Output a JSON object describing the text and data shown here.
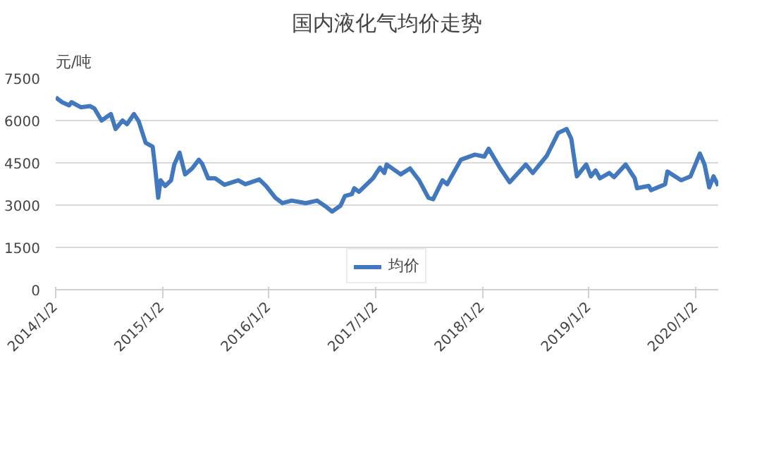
{
  "chart_data": {
    "type": "line",
    "title": "国内液化气均价走势",
    "ylabel": "元/吨",
    "x": [
      "2014-01-02",
      "2014-01-24",
      "2014-02-17",
      "2014-02-25",
      "2014-03-29",
      "2014-04-30",
      "2014-05-15",
      "2014-06-08",
      "2014-07-10",
      "2014-07-26",
      "2014-08-19",
      "2014-09-03",
      "2014-09-27",
      "2014-10-13",
      "2014-11-06",
      "2014-11-30",
      "2014-12-08",
      "2014-12-19",
      "2014-12-27",
      "2015-01-12",
      "2015-02-01",
      "2015-02-12",
      "2015-03-02",
      "2015-03-21",
      "2015-04-14",
      "2015-05-07",
      "2015-05-18",
      "2015-06-08",
      "2015-07-02",
      "2015-08-03",
      "2015-09-19",
      "2015-10-13",
      "2015-11-30",
      "2015-12-23",
      "2016-01-24",
      "2016-02-17",
      "2016-03-20",
      "2016-05-07",
      "2016-06-15",
      "2016-07-17",
      "2016-08-05",
      "2016-09-03",
      "2016-09-18",
      "2016-10-12",
      "2016-10-20",
      "2016-11-05",
      "2016-12-23",
      "2017-01-16",
      "2017-01-31",
      "2017-02-08",
      "2017-03-28",
      "2017-04-29",
      "2017-05-30",
      "2017-07-01",
      "2017-07-17",
      "2017-08-18",
      "2017-09-03",
      "2017-10-20",
      "2017-12-07",
      "2018-01-08",
      "2018-01-23",
      "2018-03-04",
      "2018-04-05",
      "2018-05-30",
      "2018-06-23",
      "2018-08-10",
      "2018-09-18",
      "2018-10-17",
      "2018-11-02",
      "2018-11-21",
      "2018-12-23",
      "2019-01-08",
      "2019-01-24",
      "2019-02-08",
      "2019-03-12",
      "2019-03-28",
      "2019-05-07",
      "2019-06-07",
      "2019-06-15",
      "2019-07-25",
      "2019-08-02",
      "2019-09-19",
      "2019-09-27",
      "2019-11-13",
      "2019-12-15",
      "2020-01-16",
      "2020-02-01",
      "2020-02-17",
      "2020-03-03",
      "2020-03-19"
    ],
    "series": [
      {
        "name": "均价",
        "color": "#4278be",
        "values": [
          6820,
          6650,
          6540,
          6650,
          6470,
          6510,
          6420,
          6000,
          6230,
          5700,
          6000,
          5870,
          6230,
          5980,
          5210,
          5070,
          4370,
          3260,
          3880,
          3680,
          3880,
          4440,
          4860,
          4090,
          4300,
          4610,
          4470,
          3950,
          3950,
          3720,
          3880,
          3740,
          3910,
          3680,
          3260,
          3070,
          3160,
          3070,
          3160,
          2930,
          2770,
          2980,
          3320,
          3390,
          3600,
          3470,
          3950,
          4330,
          4140,
          4440,
          4090,
          4300,
          3880,
          3260,
          3210,
          3880,
          3740,
          4610,
          4790,
          4720,
          5000,
          4300,
          3810,
          4440,
          4140,
          4750,
          5560,
          5700,
          5350,
          4020,
          4440,
          4020,
          4230,
          3950,
          4140,
          3990,
          4440,
          3950,
          3600,
          3680,
          3530,
          3740,
          4190,
          3880,
          4020,
          4830,
          4440,
          3630,
          4020,
          3680
        ]
      }
    ],
    "xlim": [
      "2014-01-02",
      "2020-03-19"
    ],
    "xticks": [
      {
        "value": "2014-01-02",
        "label": "2014/1/2"
      },
      {
        "value": "2015-01-02",
        "label": "2015/1/2"
      },
      {
        "value": "2016-01-02",
        "label": "2016/1/2"
      },
      {
        "value": "2017-01-02",
        "label": "2017/1/2"
      },
      {
        "value": "2018-01-02",
        "label": "2018/1/2"
      },
      {
        "value": "2019-01-02",
        "label": "2019/1/2"
      },
      {
        "value": "2020-01-02",
        "label": "2020/1/2"
      }
    ],
    "ylim": [
      0,
      7500
    ],
    "yticks": [
      0,
      1500,
      3000,
      4500,
      6000,
      7500
    ],
    "grid": "y",
    "legend": "bottom",
    "line_style": "solid"
  }
}
